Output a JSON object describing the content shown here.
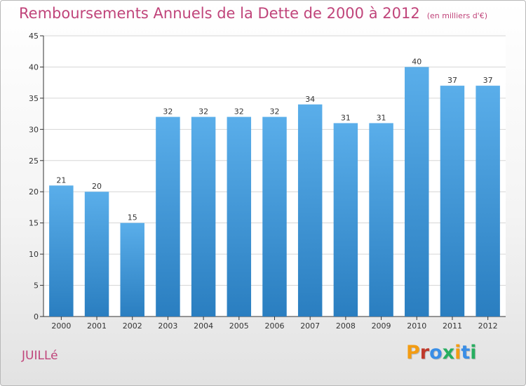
{
  "header": {
    "title": "Remboursements Annuels de la Dette de 2000 à 2012",
    "unit": "(en milliers d'€)"
  },
  "footer": {
    "place": "JUILLé",
    "logo": "Proxiti",
    "logo_colors": [
      "#f39c12",
      "#c0392b",
      "#3a8ee6",
      "#27ae60",
      "#f39c12",
      "#3a8ee6",
      "#27ae60"
    ]
  },
  "colors": {
    "title": "#c0447a",
    "bar_light": "#5aaeea",
    "bar_dark": "#2a7ec0",
    "grid": "#d6d6d6",
    "axis": "#333333"
  },
  "chart_data": {
    "type": "bar",
    "title": "Remboursements Annuels de la Dette de 2000 à 2012",
    "subtitle": "(en milliers d'€)",
    "xlabel": "",
    "ylabel": "",
    "categories": [
      "2000",
      "2001",
      "2002",
      "2003",
      "2004",
      "2005",
      "2006",
      "2007",
      "2008",
      "2009",
      "2010",
      "2011",
      "2012"
    ],
    "values": [
      21,
      20,
      15,
      32,
      32,
      32,
      32,
      34,
      31,
      31,
      40,
      37,
      37
    ],
    "ylim": [
      0,
      45
    ],
    "yticks": [
      0,
      5,
      10,
      15,
      20,
      25,
      30,
      35,
      40,
      45
    ],
    "grid": true,
    "data_labels": true
  }
}
